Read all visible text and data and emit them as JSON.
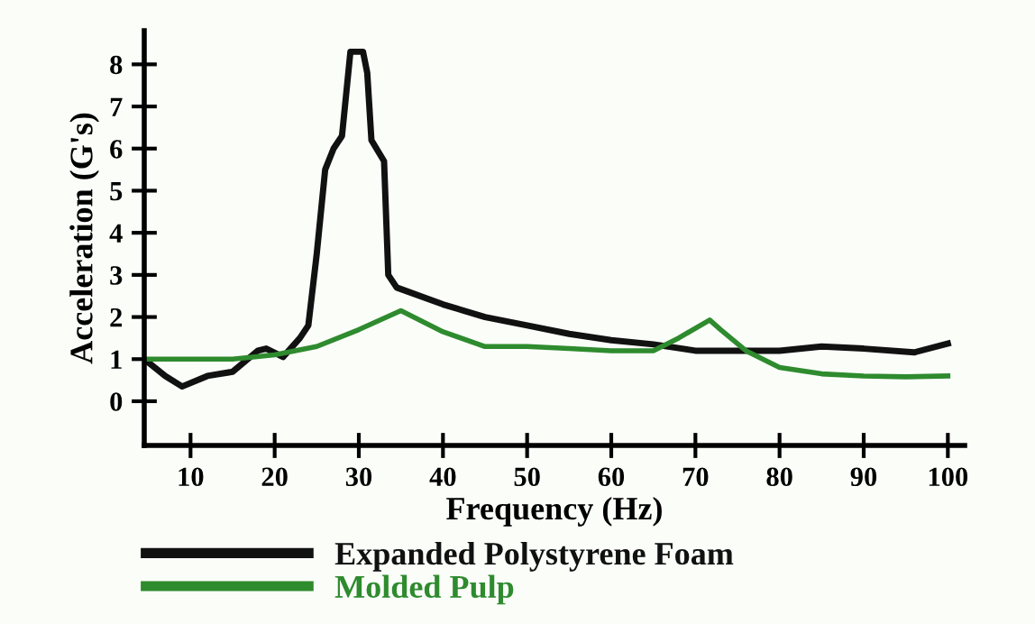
{
  "chart_data": {
    "type": "line",
    "xlabel": "Frequency (Hz)",
    "ylabel": "Acceleration (G's)",
    "xlim": [
      4.5,
      102
    ],
    "ylim": [
      -1.05,
      8.8
    ],
    "xticks": [
      10,
      20,
      30,
      40,
      50,
      60,
      70,
      80,
      90,
      100
    ],
    "yticks": [
      0,
      1,
      2,
      3,
      4,
      5,
      6,
      7,
      8
    ],
    "grid": false,
    "legend": "bottom",
    "marker": "none",
    "line_style": "solid",
    "series": [
      {
        "name": "Expanded Polystyrene Foam",
        "color": "#111111",
        "x": [
          4.5,
          7,
          9,
          12,
          15,
          18,
          19,
          21,
          23,
          24,
          25,
          26,
          27,
          28,
          29,
          30.5,
          31,
          31.5,
          33,
          33.5,
          34.5,
          40,
          45,
          50,
          55,
          60,
          65,
          70,
          75,
          80,
          85,
          90,
          96,
          100
        ],
        "values": [
          1.0,
          0.6,
          0.35,
          0.6,
          0.7,
          1.2,
          1.25,
          1.05,
          1.5,
          1.8,
          3.5,
          5.5,
          6.0,
          6.3,
          8.3,
          8.3,
          7.8,
          6.2,
          5.7,
          3.0,
          2.7,
          2.3,
          2.0,
          1.8,
          1.6,
          1.45,
          1.35,
          1.2,
          1.2,
          1.2,
          1.3,
          1.25,
          1.16,
          1.37
        ]
      },
      {
        "name": "Molded Pulp",
        "color": "#2e8b2e",
        "x": [
          4.5,
          10,
          15,
          20,
          25,
          30,
          35,
          40,
          45,
          50,
          55,
          60,
          65,
          68,
          71.7,
          73,
          76,
          80,
          85,
          90,
          95,
          100
        ],
        "values": [
          1.0,
          1.0,
          1.0,
          1.1,
          1.3,
          1.7,
          2.15,
          1.65,
          1.3,
          1.3,
          1.25,
          1.2,
          1.2,
          1.5,
          1.93,
          1.7,
          1.2,
          0.8,
          0.65,
          0.6,
          0.58,
          0.6
        ]
      }
    ]
  }
}
